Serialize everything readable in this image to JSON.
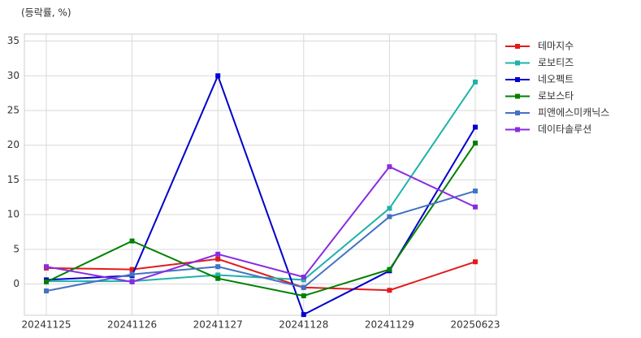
{
  "chart_data": {
    "type": "line",
    "y_label": "(등락률, %)",
    "categories": [
      "20241125",
      "20241126",
      "20241127",
      "20241128",
      "20241129",
      "20250623"
    ],
    "series": [
      {
        "name": "테마지수",
        "color": "#e31a1c",
        "values": [
          2.3,
          2.1,
          3.6,
          -0.5,
          -0.9,
          3.2
        ]
      },
      {
        "name": "로보티즈",
        "color": "#20b2aa",
        "values": [
          0.4,
          0.4,
          1.3,
          0.6,
          10.9,
          29.1
        ]
      },
      {
        "name": "네오펙트",
        "color": "#0000cd",
        "values": [
          0.6,
          1.2,
          30.0,
          -4.4,
          1.9,
          22.6
        ]
      },
      {
        "name": "로보스타",
        "color": "#008000",
        "values": [
          0.3,
          6.2,
          0.8,
          -1.7,
          2.1,
          20.3
        ]
      },
      {
        "name": "피앤에스미캐닉스",
        "color": "#4472c4",
        "values": [
          -1.0,
          1.4,
          2.5,
          -0.5,
          9.7,
          13.4
        ]
      },
      {
        "name": "데이타솔루션",
        "color": "#8a2be2",
        "values": [
          2.5,
          0.3,
          4.3,
          1.0,
          16.9,
          11.1
        ]
      }
    ],
    "ylim": [
      -4.5,
      36
    ],
    "yticks": [
      0,
      5,
      10,
      15,
      20,
      25,
      30,
      35
    ],
    "grid": true,
    "legend": "outside-right"
  }
}
